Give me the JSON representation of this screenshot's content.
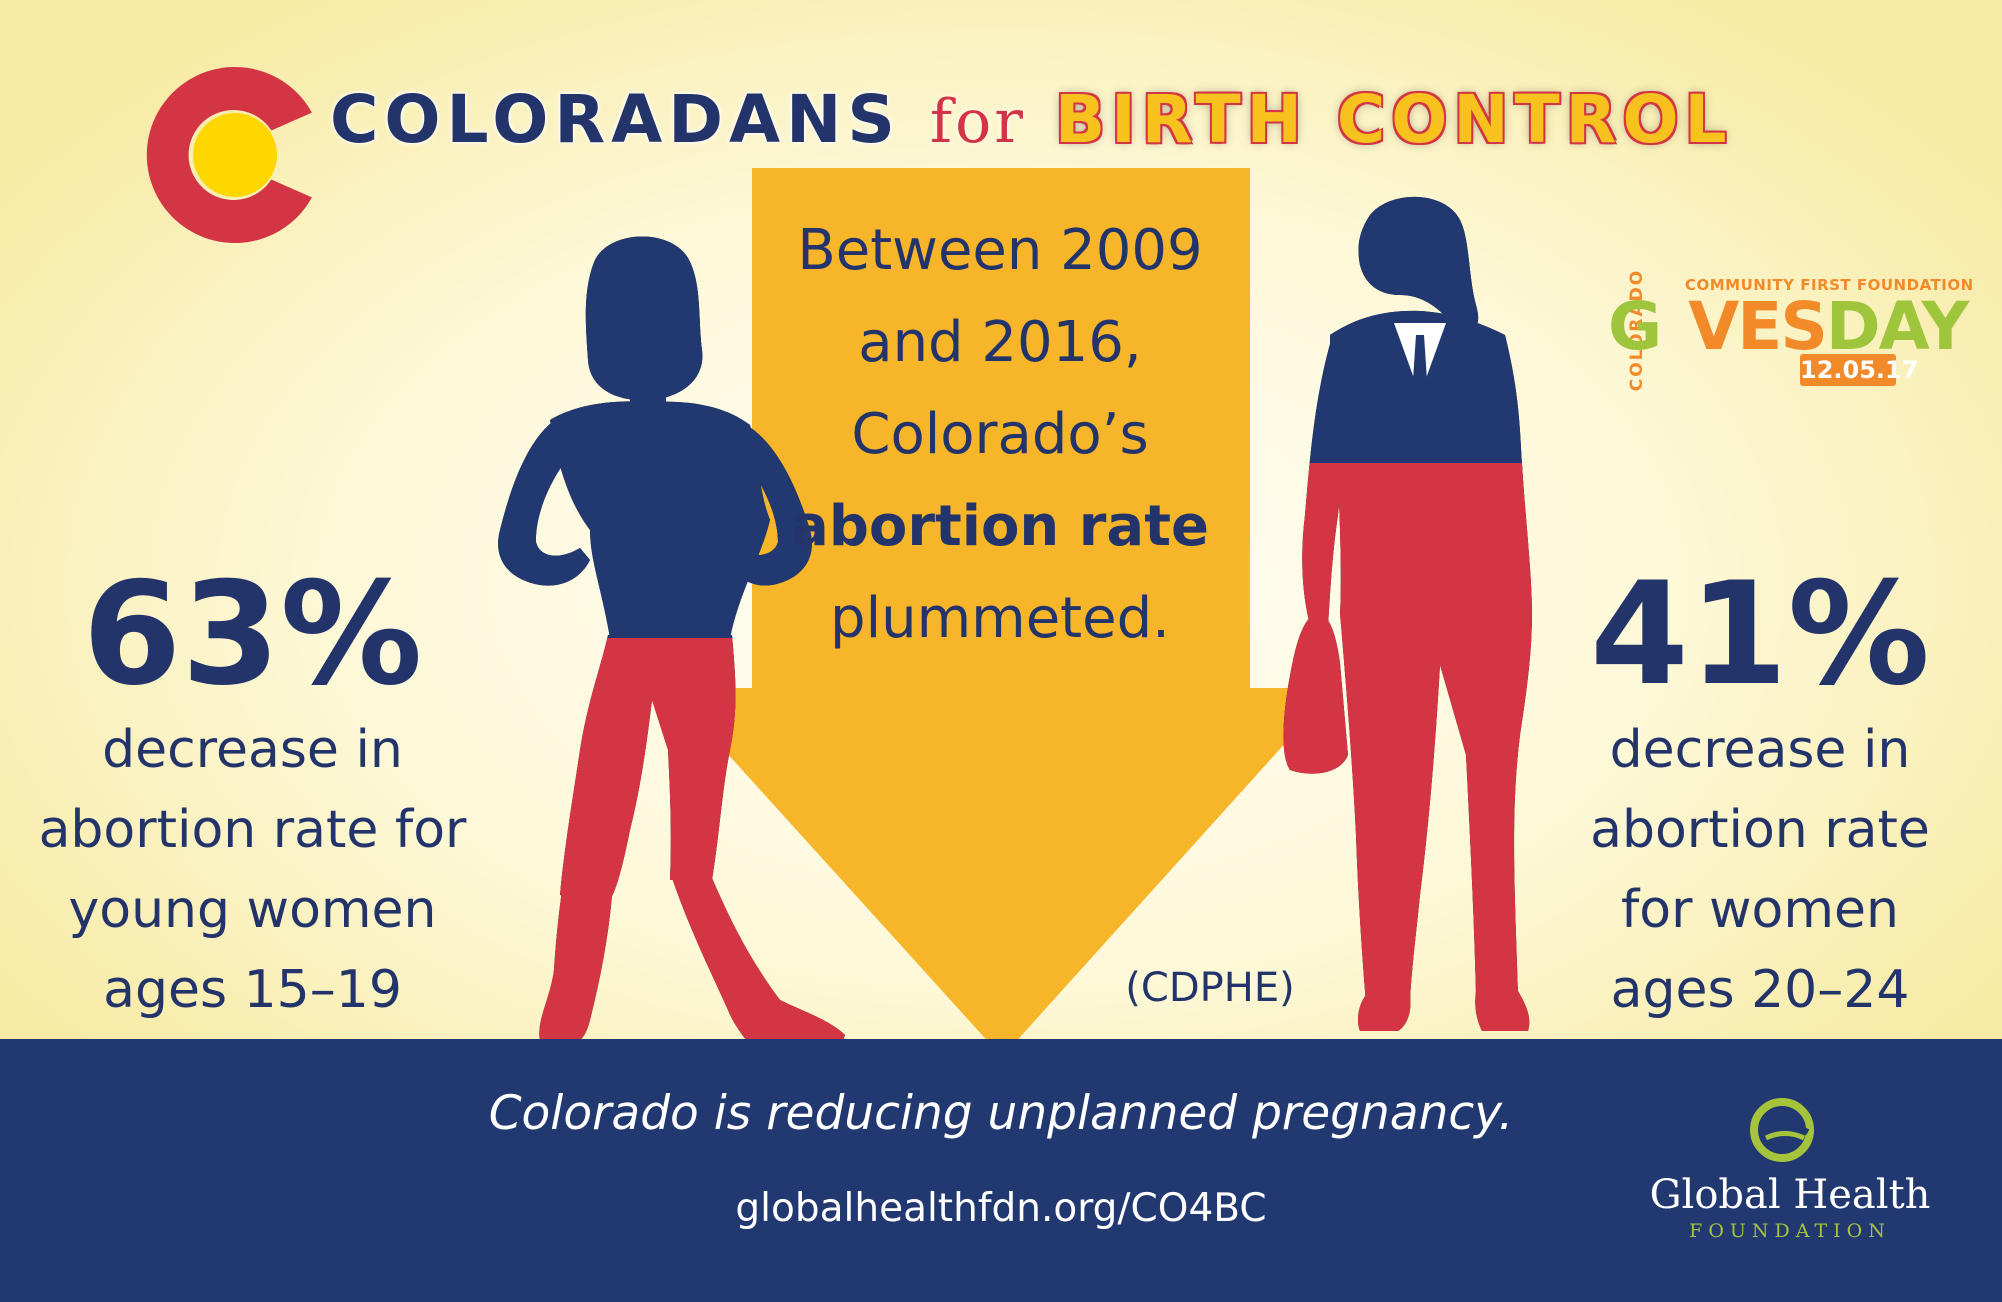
{
  "header": {
    "title_part1": "COLORADANS",
    "title_part2": "for",
    "title_part3": "BIRTH CONTROL"
  },
  "left_stat": {
    "percent": "63%",
    "line1": "decrease in",
    "line2": "abortion rate for",
    "line3": "young women",
    "line4": "ages 15–19"
  },
  "right_stat": {
    "percent": "41%",
    "line1": "decrease in",
    "line2": "abortion rate",
    "line3": "for women",
    "line4": "ages 20–24"
  },
  "center": {
    "line1": "Between 2009",
    "line2": "and 2016,",
    "line3": "Colorado’s",
    "line4_bold": "abortion rate",
    "line5": "plummeted."
  },
  "source": "(CDPHE)",
  "footer": {
    "tagline": "Colorado is reducing unplanned pregnancy.",
    "url": "globalhealthfdn.org/CO4BC"
  },
  "ghf_logo": {
    "name": "Global Health",
    "subtitle": "FOUNDATION"
  },
  "gives_logo": {
    "organization": "COMMUNITY FIRST FOUNDATION",
    "word_g": "G",
    "word_ives": "VES",
    "word_day": "DAY",
    "date": "12.05.17",
    "vertical": "COLORADO"
  },
  "colors": {
    "navy": "#223870",
    "red": "#d33545",
    "yellow": "#f7c21d",
    "arrow": "#f7b52a",
    "cream": "#fdf8d8"
  }
}
